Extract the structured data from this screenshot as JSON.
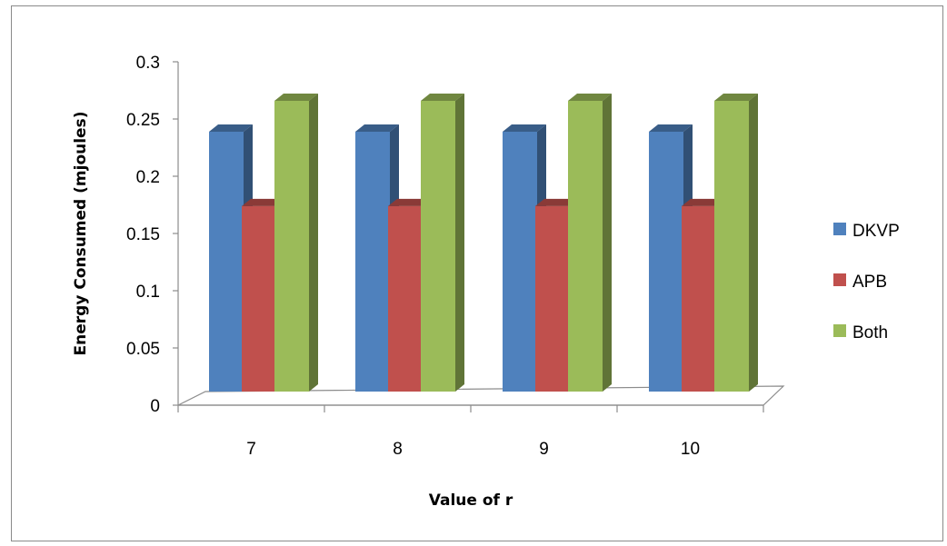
{
  "chart_data": {
    "type": "bar",
    "style": "3d-clustered-column",
    "categories": [
      "7",
      "8",
      "9",
      "10"
    ],
    "series": [
      {
        "name": "DKVP",
        "values": [
          0.227,
          0.227,
          0.227,
          0.227
        ],
        "color": "#4F81BD"
      },
      {
        "name": "APB",
        "values": [
          0.162,
          0.162,
          0.162,
          0.162
        ],
        "color": "#C0504D"
      },
      {
        "name": "Both",
        "values": [
          0.254,
          0.254,
          0.254,
          0.254
        ],
        "color": "#9BBB59"
      }
    ],
    "y_ticks": [
      "0",
      "0.05",
      "0.1",
      "0.15",
      "0.2",
      "0.25",
      "0.3"
    ],
    "ylim": [
      0,
      0.3
    ],
    "xlabel": "Value of r",
    "ylabel": "Energy Consumed (mjoules)",
    "legend_position": "right",
    "grid": false
  }
}
